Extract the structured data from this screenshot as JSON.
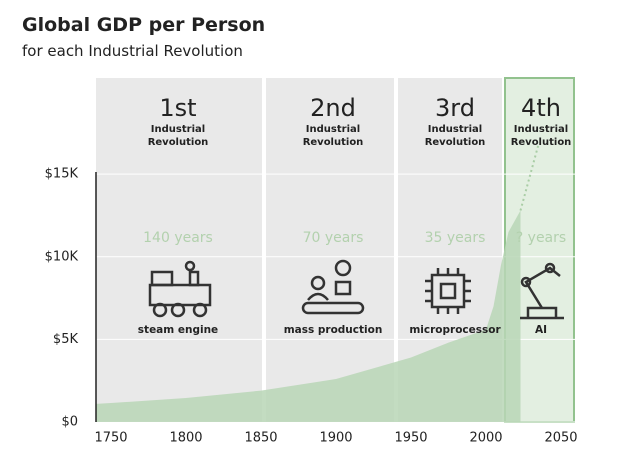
{
  "chart_data": {
    "type": "area",
    "title": "Global GDP per Person",
    "subtitle": "for each Industrial Revolution",
    "x": [
      1740,
      1750,
      1800,
      1850,
      1900,
      1950,
      1975,
      2000,
      2005,
      2010,
      2015,
      2023
    ],
    "values": [
      1100,
      1150,
      1450,
      1900,
      2600,
      3900,
      4800,
      5600,
      7000,
      9500,
      11500,
      12800
    ],
    "projection_x": [
      2023,
      2035
    ],
    "projection_values": [
      12800,
      16800
    ],
    "color": "#b9d6b6",
    "xlim": [
      1740,
      2060
    ],
    "xticks": [
      1750,
      1800,
      1850,
      1900,
      1950,
      2000,
      2050
    ],
    "ylim": [
      0,
      21000
    ],
    "yticks": [
      {
        "value": 0,
        "label": "$0"
      },
      {
        "value": 5000,
        "label": "$5K"
      },
      {
        "value": 10000,
        "label": "$10K"
      },
      {
        "value": 15000,
        "label": "$15K"
      }
    ],
    "grid": true,
    "revolutions": [
      {
        "number": "1st",
        "label": "Industrial Revolution",
        "duration": "140 years",
        "technology": "steam engine"
      },
      {
        "number": "2nd",
        "label": "Industrial Revolution",
        "duration": "70 years",
        "technology": "mass production"
      },
      {
        "number": "3rd",
        "label": "Industrial Revolution",
        "duration": "35 years",
        "technology": "microprocessor"
      },
      {
        "number": "4th",
        "label": "Industrial Revolution",
        "duration": "? years",
        "technology": "AI"
      }
    ]
  }
}
